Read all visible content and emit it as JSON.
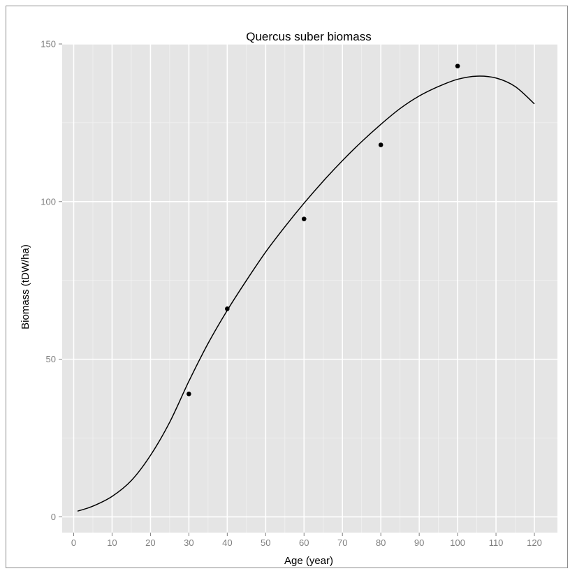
{
  "chart_data": {
    "type": "scatter",
    "title": "Quercus suber biomass",
    "xlabel": "Age (year)",
    "ylabel": "Biomass (tDW/ha)",
    "xlim": [
      -3,
      126
    ],
    "ylim": [
      -5,
      150
    ],
    "x_ticks": [
      0,
      10,
      20,
      30,
      40,
      50,
      60,
      70,
      80,
      90,
      100,
      110,
      120
    ],
    "y_ticks": [
      0,
      50,
      100,
      150
    ],
    "grid": true,
    "legend": "none",
    "colors": {
      "panel": "#e5e5e5",
      "grid_major": "#ffffff",
      "grid_minor": "#f2f2f2",
      "points": "#000000",
      "curve": "#000000"
    },
    "series": [
      {
        "type": "scatter",
        "points": [
          {
            "x": 30,
            "y": 39
          },
          {
            "x": 40,
            "y": 66
          },
          {
            "x": 60,
            "y": 94.5
          },
          {
            "x": 80,
            "y": 118
          },
          {
            "x": 100,
            "y": 143
          }
        ]
      },
      {
        "type": "line",
        "points": [
          {
            "x": 1,
            "y": 1.8
          },
          {
            "x": 5,
            "y": 3.4
          },
          {
            "x": 10,
            "y": 6.5
          },
          {
            "x": 15,
            "y": 11.5
          },
          {
            "x": 20,
            "y": 19.5
          },
          {
            "x": 25,
            "y": 30
          },
          {
            "x": 30,
            "y": 43
          },
          {
            "x": 35,
            "y": 55
          },
          {
            "x": 40,
            "y": 65.5
          },
          {
            "x": 45,
            "y": 75
          },
          {
            "x": 50,
            "y": 84
          },
          {
            "x": 55,
            "y": 92
          },
          {
            "x": 60,
            "y": 99.5
          },
          {
            "x": 65,
            "y": 106.5
          },
          {
            "x": 70,
            "y": 113
          },
          {
            "x": 75,
            "y": 119
          },
          {
            "x": 80,
            "y": 124.5
          },
          {
            "x": 85,
            "y": 129.5
          },
          {
            "x": 90,
            "y": 133.5
          },
          {
            "x": 95,
            "y": 136.5
          },
          {
            "x": 100,
            "y": 138.8
          },
          {
            "x": 105,
            "y": 139.8
          },
          {
            "x": 110,
            "y": 139.2
          },
          {
            "x": 115,
            "y": 136.5
          },
          {
            "x": 120,
            "y": 131
          }
        ]
      }
    ]
  }
}
